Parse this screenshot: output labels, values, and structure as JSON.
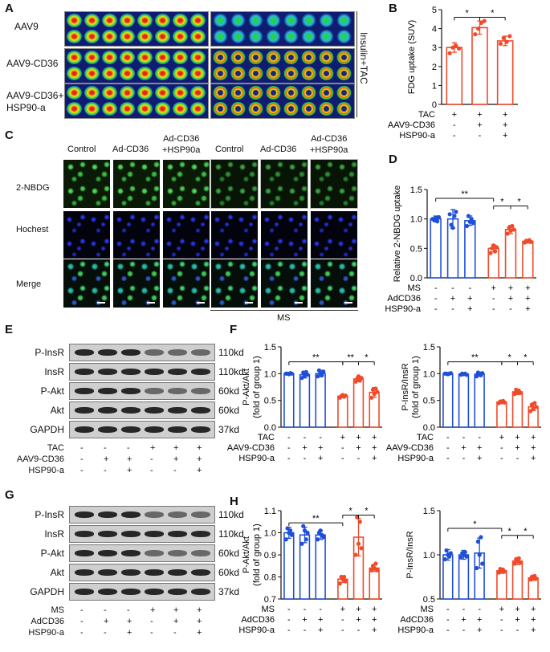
{
  "panels": {
    "A": "A",
    "B": "B",
    "C": "C",
    "D": "D",
    "E": "E",
    "F": "F",
    "G": "G",
    "H": "H"
  },
  "panelA": {
    "row_labels": [
      "AAV9",
      "AAV9-CD36",
      "AAV9-CD36+\nHSP90-a"
    ],
    "side_label": "Insulin+TAC"
  },
  "panelC": {
    "col_labels": [
      "Control",
      "Ad-CD36",
      "Ad-CD36\n+HSP90a",
      "Control",
      "Ad-CD36",
      "Ad-CD36\n+HSP90a"
    ],
    "row_labels": [
      "2-NBDG",
      "Hochest",
      "Merge"
    ],
    "bottom_label": "MS"
  },
  "panelE": {
    "bands": [
      "P-InsR",
      "InsR",
      "P-Akt",
      "Akt",
      "GAPDH"
    ],
    "sizes": [
      "110kd",
      "110kd",
      "60kd",
      "60kd",
      "37kd"
    ],
    "cond_labels": [
      "TAC",
      "AAV9-CD36",
      "HSP90-a"
    ],
    "cond_signs": [
      [
        "-",
        "-",
        "-",
        "+",
        "+",
        "+"
      ],
      [
        "-",
        "+",
        "+",
        "-",
        "+",
        "+"
      ],
      [
        "-",
        "-",
        "+",
        "-",
        "-",
        "+"
      ]
    ]
  },
  "panelG": {
    "bands": [
      "P-InsR",
      "InsR",
      "P-Akt",
      "Akt",
      "GAPDH"
    ],
    "sizes": [
      "110kd",
      "110kd",
      "60kd",
      "60kd",
      "37kd"
    ],
    "cond_labels": [
      "MS",
      "AdCD36",
      "HSP90-a"
    ],
    "cond_signs": [
      [
        "-",
        "-",
        "-",
        "+",
        "+",
        "+"
      ],
      [
        "-",
        "+",
        "+",
        "-",
        "+",
        "+"
      ],
      [
        "-",
        "-",
        "+",
        "-",
        "-",
        "+"
      ]
    ]
  },
  "colors": {
    "blue": "#1f4fd8",
    "red": "#f04a2a"
  },
  "chart_data": [
    {
      "id": "B",
      "type": "bar",
      "ylabel": "FDG uptake (SUV)",
      "ylim": [
        0,
        5
      ],
      "yticks": [
        0,
        1,
        2,
        3,
        4,
        5
      ],
      "values": [
        3.0,
        4.05,
        3.35
      ],
      "errors": [
        0.25,
        0.35,
        0.25
      ],
      "points": [
        [
          2.7,
          3.0,
          3.1,
          2.95
        ],
        [
          3.7,
          4.0,
          4.3,
          4.4
        ],
        [
          3.2,
          3.5,
          3.3,
          3.6
        ]
      ],
      "colors": [
        "red",
        "red",
        "red"
      ],
      "sig": [
        {
          "from": 0,
          "to": 1,
          "label": "*",
          "y": 4.6
        },
        {
          "from": 1,
          "to": 2,
          "label": "*",
          "y": 4.6
        }
      ],
      "cond_labels": [
        "TAC",
        "AAV9-CD36",
        "HSP90-a"
      ],
      "cond_signs": [
        [
          "+",
          "+",
          "+"
        ],
        [
          "-",
          "+",
          "+"
        ],
        [
          "-",
          "-",
          "+"
        ]
      ]
    },
    {
      "id": "D",
      "type": "bar",
      "ylabel": "Relative 2-NBDG uptake",
      "ylim": [
        0,
        1.5
      ],
      "yticks": [
        0.0,
        0.5,
        1.0,
        1.5
      ],
      "values": [
        1.0,
        1.0,
        0.97,
        0.5,
        0.82,
        0.62
      ],
      "errors": [
        0.05,
        0.16,
        0.08,
        0.06,
        0.07,
        0.03
      ],
      "points": [
        [
          1.0,
          0.98,
          1.02,
          0.96,
          1.03
        ],
        [
          1.08,
          0.9,
          0.85,
          1.05,
          1.12
        ],
        [
          0.88,
          1.05,
          0.95,
          1.0,
          0.93
        ],
        [
          0.42,
          0.5,
          0.55,
          0.45,
          0.52
        ],
        [
          0.75,
          0.85,
          0.8,
          0.88,
          0.82
        ],
        [
          0.6,
          0.63,
          0.62,
          0.64,
          0.61
        ]
      ],
      "colors": [
        "blue",
        "blue",
        "blue",
        "red",
        "red",
        "red"
      ],
      "sig": [
        {
          "from": 0,
          "to": 3,
          "label": "**",
          "y": 1.35
        },
        {
          "from": 3,
          "to": 4,
          "label": "*",
          "y": 1.22
        },
        {
          "from": 4,
          "to": 5,
          "label": "*",
          "y": 1.22
        }
      ],
      "cond_labels": [
        "MS",
        "AdCD36",
        "HSP90-a"
      ],
      "cond_signs": [
        [
          "-",
          "-",
          "-",
          "+",
          "+",
          "+"
        ],
        [
          "-",
          "+",
          "+",
          "-",
          "+",
          "+"
        ],
        [
          "-",
          "-",
          "+",
          "-",
          "-",
          "+"
        ]
      ]
    },
    {
      "id": "F1",
      "type": "bar",
      "ylabel": "P-Akt/Akt\n(fold of group 1)",
      "ylim": [
        0,
        1.5
      ],
      "yticks": [
        0.0,
        0.5,
        1.0,
        1.5
      ],
      "values": [
        1.0,
        0.98,
        1.0,
        0.58,
        0.9,
        0.65
      ],
      "errors": [
        0.02,
        0.06,
        0.06,
        0.03,
        0.05,
        0.09
      ],
      "points": [
        [
          1.0,
          1.0,
          0.99,
          1.01,
          1.0
        ],
        [
          0.92,
          1.02,
          0.96,
          1.03,
          0.98
        ],
        [
          0.95,
          1.06,
          1.0,
          0.97,
          1.04
        ],
        [
          0.55,
          0.58,
          0.6,
          0.57,
          0.59
        ],
        [
          0.85,
          0.9,
          0.95,
          0.87,
          0.92
        ],
        [
          0.55,
          0.7,
          0.62,
          0.72,
          0.66
        ]
      ],
      "colors": [
        "blue",
        "blue",
        "blue",
        "red",
        "red",
        "red"
      ],
      "sig": [
        {
          "from": 0,
          "to": 3,
          "label": "**",
          "y": 1.22
        },
        {
          "from": 3,
          "to": 4,
          "label": "**",
          "y": 1.22
        },
        {
          "from": 4,
          "to": 5,
          "label": "*",
          "y": 1.22
        }
      ],
      "cond_labels": [
        "TAC",
        "AAV9-CD36",
        "HSP90-a"
      ],
      "cond_signs": [
        [
          "-",
          "-",
          "-",
          "+",
          "+",
          "+"
        ],
        [
          "-",
          "+",
          "+",
          "-",
          "+",
          "+"
        ],
        [
          "-",
          "-",
          "+",
          "-",
          "-",
          "+"
        ]
      ]
    },
    {
      "id": "F2",
      "type": "bar",
      "ylabel": "P-InsR/InsR\n(fold of group 1)",
      "ylim": [
        0,
        1.5
      ],
      "yticks": [
        0.0,
        0.5,
        1.0,
        1.5
      ],
      "values": [
        1.0,
        0.99,
        0.99,
        0.47,
        0.66,
        0.38
      ],
      "errors": [
        0.01,
        0.02,
        0.04,
        0.03,
        0.05,
        0.07
      ],
      "points": [
        [
          1.0,
          1.0,
          0.99,
          1.0,
          1.01
        ],
        [
          0.98,
          1.0,
          0.99,
          1.0,
          0.98
        ],
        [
          0.95,
          1.02,
          1.0,
          0.97,
          1.01
        ],
        [
          0.45,
          0.48,
          0.47,
          0.49,
          0.46
        ],
        [
          0.62,
          0.7,
          0.65,
          0.68,
          0.64
        ],
        [
          0.3,
          0.42,
          0.35,
          0.45,
          0.38
        ]
      ],
      "colors": [
        "blue",
        "blue",
        "blue",
        "red",
        "red",
        "red"
      ],
      "sig": [
        {
          "from": 0,
          "to": 3,
          "label": "**",
          "y": 1.22
        },
        {
          "from": 3,
          "to": 4,
          "label": "*",
          "y": 1.22
        },
        {
          "from": 4,
          "to": 5,
          "label": "*",
          "y": 1.22
        }
      ],
      "cond_labels": [
        "TAC",
        "AAV9-CD36",
        "HSP90-a"
      ],
      "cond_signs": [
        [
          "-",
          "-",
          "-",
          "+",
          "+",
          "+"
        ],
        [
          "-",
          "+",
          "+",
          "-",
          "+",
          "+"
        ],
        [
          "-",
          "-",
          "+",
          "-",
          "-",
          "+"
        ]
      ]
    },
    {
      "id": "H1",
      "type": "bar",
      "ylabel": "P-Akt/Akt\n(fold of group 1)",
      "ylim": [
        0.7,
        1.1
      ],
      "yticks": [
        0.7,
        0.8,
        0.9,
        1.0,
        1.1
      ],
      "values": [
        1.0,
        0.99,
        0.99,
        0.79,
        0.98,
        0.84
      ],
      "errors": [
        0.025,
        0.035,
        0.02,
        0.015,
        0.085,
        0.015
      ],
      "points": [
        [
          0.97,
          1.02,
          1.0,
          1.01,
          0.99
        ],
        [
          0.95,
          1.03,
          1.01,
          0.97,
          1.0
        ],
        [
          0.97,
          1.0,
          1.01,
          0.99,
          0.98
        ],
        [
          0.77,
          0.8,
          0.79,
          0.8,
          0.78
        ],
        [
          0.9,
          1.07,
          0.95,
          1.05,
          0.93
        ],
        [
          0.83,
          0.85,
          0.84,
          0.86,
          0.83
        ]
      ],
      "colors": [
        "blue",
        "blue",
        "blue",
        "red",
        "red",
        "red"
      ],
      "sig": [
        {
          "from": 0,
          "to": 3,
          "label": "**",
          "y": 1.045
        },
        {
          "from": 3,
          "to": 4,
          "label": "*",
          "y": 1.08
        },
        {
          "from": 4,
          "to": 5,
          "label": "*",
          "y": 1.08
        }
      ],
      "cond_labels": [
        "MS",
        "AdCD36",
        "HSP90-a"
      ],
      "cond_signs": [
        [
          "-",
          "-",
          "-",
          "+",
          "+",
          "+"
        ],
        [
          "-",
          "+",
          "+",
          "-",
          "+",
          "+"
        ],
        [
          "-",
          "-",
          "+",
          "-",
          "-",
          "+"
        ]
      ]
    },
    {
      "id": "H2",
      "type": "bar",
      "ylabel": "P-InsR/InsR",
      "ylim": [
        0.5,
        1.5
      ],
      "yticks": [
        0.5,
        1.0,
        1.5
      ],
      "values": [
        1.0,
        1.0,
        1.02,
        0.82,
        0.93,
        0.74
      ],
      "errors": [
        0.06,
        0.05,
        0.17,
        0.03,
        0.04,
        0.03
      ],
      "points": [
        [
          0.95,
          1.05,
          1.0,
          0.98,
          1.02
        ],
        [
          0.97,
          1.02,
          1.0,
          1.03,
          0.98
        ],
        [
          0.85,
          1.15,
          1.0,
          1.2,
          0.9
        ],
        [
          0.8,
          0.84,
          0.82,
          0.83,
          0.81
        ],
        [
          0.9,
          0.95,
          0.93,
          0.96,
          0.91
        ],
        [
          0.72,
          0.75,
          0.74,
          0.76,
          0.73
        ]
      ],
      "colors": [
        "blue",
        "blue",
        "blue",
        "red",
        "red",
        "red"
      ],
      "sig": [
        {
          "from": 0,
          "to": 3,
          "label": "*",
          "y": 1.3
        },
        {
          "from": 3,
          "to": 4,
          "label": "*",
          "y": 1.22
        },
        {
          "from": 4,
          "to": 5,
          "label": "*",
          "y": 1.22
        }
      ],
      "cond_labels": [
        "MS",
        "AdCD36",
        "HSP90-a"
      ],
      "cond_signs": [
        [
          "-",
          "-",
          "-",
          "+",
          "+",
          "+"
        ],
        [
          "-",
          "+",
          "+",
          "-",
          "+",
          "+"
        ],
        [
          "-",
          "-",
          "+",
          "-",
          "-",
          "+"
        ]
      ]
    }
  ]
}
